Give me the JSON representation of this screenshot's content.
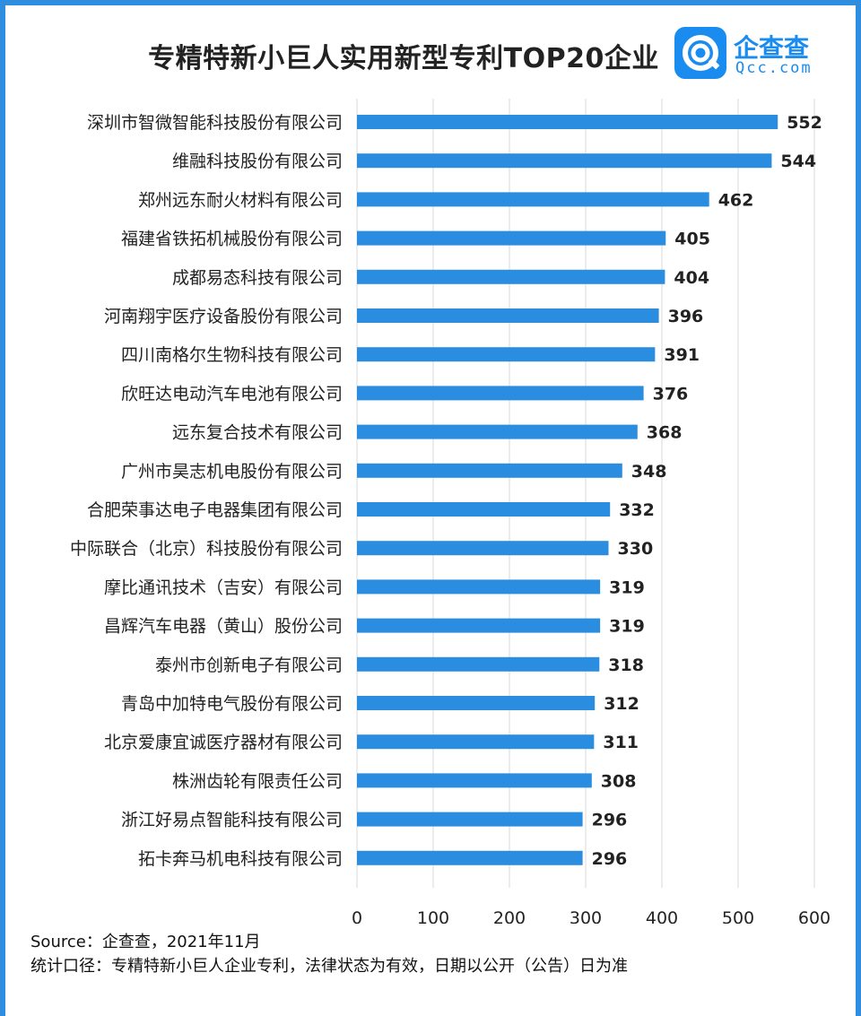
{
  "title": "专精特新小巨人实用新型专利TOP20企业",
  "logo": {
    "name": "企查查",
    "domain": "Qcc.com",
    "icon": "qcc-logo-icon"
  },
  "colors": {
    "bar": "#2a8de0",
    "frame": "#2f8de0",
    "grid": "#d9d9d9"
  },
  "chart_data": {
    "type": "bar",
    "orientation": "horizontal",
    "categories": [
      "深圳市智微智能科技股份有限公司",
      "维融科技股份有限公司",
      "郑州远东耐火材料有限公司",
      "福建省铁拓机械股份有限公司",
      "成都易态科技有限公司",
      "河南翔宇医疗设备股份有限公司",
      "四川南格尔生物科技有限公司",
      "欣旺达电动汽车电池有限公司",
      "远东复合技术有限公司",
      "广州市昊志机电股份有限公司",
      "合肥荣事达电子电器集团有限公司",
      "中际联合（北京）科技股份有限公司",
      "摩比通讯技术（吉安）有限公司",
      "昌辉汽车电器（黄山）股份公司",
      "泰州市创新电子有限公司",
      "青岛中加特电气股份有限公司",
      "北京爱康宜诚医疗器材有限公司",
      "株洲齿轮有限责任公司",
      "浙江好易点智能科技有限公司",
      "拓卡奔马机电科技有限公司"
    ],
    "values": [
      552,
      544,
      462,
      405,
      404,
      396,
      391,
      376,
      368,
      348,
      332,
      330,
      319,
      319,
      318,
      312,
      311,
      308,
      296,
      296
    ],
    "xlim": [
      0,
      600
    ],
    "xticks": [
      0,
      100,
      200,
      300,
      400,
      500,
      600
    ],
    "grid": true,
    "data_labels": true
  },
  "footer": {
    "source": "Source：企查查，2021年11月",
    "note": "统计口径：专精特新小巨人企业专利，法律状态为有效，日期以公开（公告）日为准"
  }
}
